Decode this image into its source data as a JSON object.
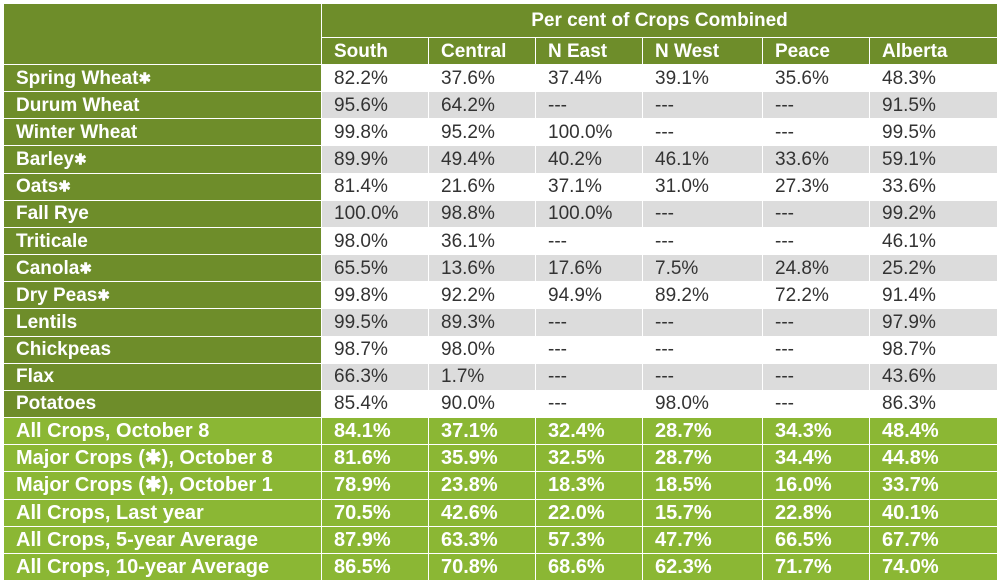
{
  "table": {
    "title": "Per cent of Crops Combined",
    "columns": [
      "South",
      "Central",
      "N East",
      "N West",
      "Peace",
      "Alberta"
    ],
    "crop_rows": [
      {
        "label": "Spring Wheat",
        "star": "✱",
        "values": [
          "82.2%",
          "37.6%",
          "37.4%",
          "39.1%",
          "35.6%",
          "48.3%"
        ]
      },
      {
        "label": "Durum Wheat",
        "star": "",
        "values": [
          "95.6%",
          "64.2%",
          "---",
          "---",
          "---",
          "91.5%"
        ]
      },
      {
        "label": "Winter Wheat",
        "star": "",
        "values": [
          "99.8%",
          "95.2%",
          "100.0%",
          "---",
          "---",
          "99.5%"
        ]
      },
      {
        "label": "Barley",
        "star": "✱",
        "values": [
          "89.9%",
          "49.4%",
          "40.2%",
          "46.1%",
          "33.6%",
          "59.1%"
        ]
      },
      {
        "label": "Oats",
        "star": "✱",
        "values": [
          "81.4%",
          "21.6%",
          "37.1%",
          "31.0%",
          "27.3%",
          "33.6%"
        ]
      },
      {
        "label": "Fall Rye",
        "star": "",
        "values": [
          "100.0%",
          "98.8%",
          "100.0%",
          "---",
          "---",
          "99.2%"
        ]
      },
      {
        "label": "Triticale",
        "star": "",
        "values": [
          "98.0%",
          "36.1%",
          "---",
          "---",
          "---",
          "46.1%"
        ]
      },
      {
        "label": "Canola",
        "star": "✱",
        "values": [
          "65.5%",
          "13.6%",
          "17.6%",
          "7.5%",
          "24.8%",
          "25.2%"
        ]
      },
      {
        "label": "Dry Peas",
        "star": "✱",
        "values": [
          "99.8%",
          "92.2%",
          "94.9%",
          "89.2%",
          "72.2%",
          "91.4%"
        ]
      },
      {
        "label": "Lentils",
        "star": "",
        "values": [
          "99.5%",
          "89.3%",
          "---",
          "---",
          "---",
          "97.9%"
        ]
      },
      {
        "label": "Chickpeas",
        "star": "",
        "values": [
          "98.7%",
          "98.0%",
          "---",
          "---",
          "---",
          "98.7%"
        ]
      },
      {
        "label": "Flax",
        "star": "",
        "values": [
          "66.3%",
          "1.7%",
          "---",
          "---",
          "---",
          "43.6%"
        ]
      },
      {
        "label": "Potatoes",
        "star": "",
        "values": [
          "85.4%",
          "90.0%",
          "---",
          "98.0%",
          "---",
          "86.3%"
        ]
      }
    ],
    "summary_rows": [
      {
        "label": "All Crops, October 8",
        "values": [
          "84.1%",
          "37.1%",
          "32.4%",
          "28.7%",
          "34.3%",
          "48.4%"
        ]
      },
      {
        "label": "Major Crops (✱), October 8",
        "values": [
          "81.6%",
          "35.9%",
          "32.5%",
          "28.7%",
          "34.4%",
          "44.8%"
        ]
      },
      {
        "label": "Major Crops (✱), October 1",
        "values": [
          "78.9%",
          "23.8%",
          "18.3%",
          "18.5%",
          "16.0%",
          "33.7%"
        ]
      },
      {
        "label": "All Crops, Last year",
        "values": [
          "70.5%",
          "42.6%",
          "22.0%",
          "15.7%",
          "22.8%",
          "40.1%"
        ]
      },
      {
        "label": "All Crops, 5-year Average",
        "values": [
          "87.9%",
          "63.3%",
          "57.3%",
          "47.7%",
          "66.5%",
          "67.7%"
        ]
      },
      {
        "label": "All Crops, 10-year Average",
        "values": [
          "86.5%",
          "70.8%",
          "68.6%",
          "62.3%",
          "71.7%",
          "74.0%"
        ]
      }
    ],
    "colors": {
      "header_green": "#6e8d2a",
      "summary_green": "#8bb734",
      "row_alt_gray": "#dcdcdc"
    }
  }
}
